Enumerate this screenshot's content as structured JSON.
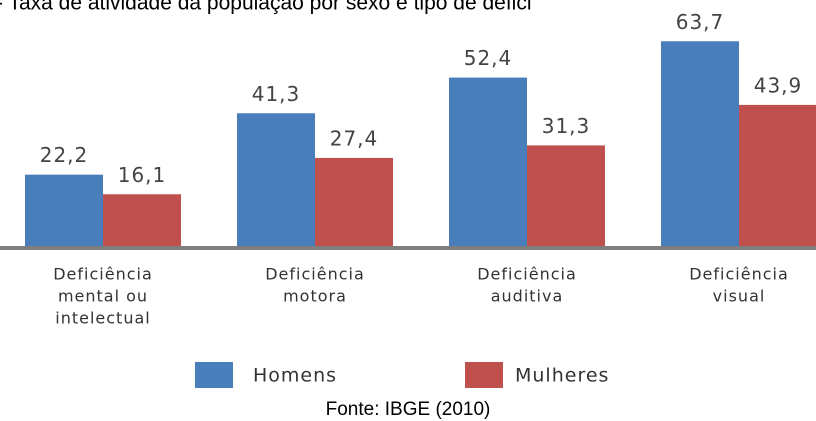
{
  "chart_data": {
    "type": "bar",
    "title": "- Taxa de atividade da população por sexo e tipo de defici",
    "categories": [
      [
        "Deficiência",
        "mental ou",
        "intelectual"
      ],
      [
        "Deficiência",
        "motora"
      ],
      [
        "Deficiência",
        "auditiva"
      ],
      [
        "Deficiência",
        "visual"
      ]
    ],
    "series": [
      {
        "name": "Homens",
        "color": "#4a7ebb",
        "values": [
          22.2,
          41.3,
          52.4,
          63.7
        ],
        "value_labels": [
          "22,2",
          "41,3",
          "52,4",
          "63,7"
        ]
      },
      {
        "name": "Mulheres",
        "color": "#c0504d",
        "values": [
          16.1,
          27.4,
          31.3,
          43.9
        ],
        "value_labels": [
          "16,1",
          "27,4",
          "31,3",
          "43,9"
        ]
      }
    ],
    "ylim": [
      0,
      70
    ],
    "source": "Fonte: IBGE (2010)"
  }
}
